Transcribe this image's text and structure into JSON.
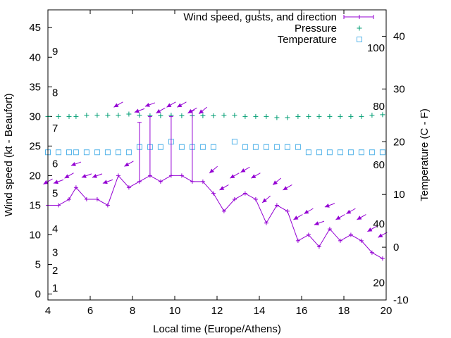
{
  "chart_data": {
    "type": "line",
    "title": "",
    "xlabel": "Local time (Europe/Athens)",
    "ylabel_left": "Wind speed (kt - Beaufort)",
    "ylabel_right": "Temperature (C - F)",
    "xlim": [
      4,
      20
    ],
    "ylim_left": [
      -1,
      48
    ],
    "ylim_right": [
      -10,
      45
    ],
    "x_ticks": [
      4,
      6,
      8,
      10,
      12,
      14,
      16,
      18,
      20
    ],
    "y_ticks_left": [
      0,
      5,
      10,
      15,
      20,
      25,
      30,
      35,
      40,
      45
    ],
    "y_ticks_right": [
      -10,
      0,
      10,
      20,
      30,
      40
    ],
    "beaufort_labels": [
      {
        "label": "1",
        "y": 1
      },
      {
        "label": "2",
        "y": 4
      },
      {
        "label": "3",
        "y": 7
      },
      {
        "label": "4",
        "y": 11
      },
      {
        "label": "5",
        "y": 17
      },
      {
        "label": "6",
        "y": 22
      },
      {
        "label": "7",
        "y": 28
      },
      {
        "label": "8",
        "y": 34
      },
      {
        "label": "9",
        "y": 41
      }
    ],
    "fahrenheit_labels": [
      {
        "label": "20",
        "y_celsius": -6.7
      },
      {
        "label": "40",
        "y_celsius": 4.4
      },
      {
        "label": "60",
        "y_celsius": 15.6
      },
      {
        "label": "80",
        "y_celsius": 26.7
      },
      {
        "label": "100",
        "y_celsius": 37.8
      }
    ],
    "legend_position": "top-right",
    "series": [
      {
        "name": "Wind speed, gusts, and direction",
        "color": "#9400d3",
        "x": [
          4,
          4.5,
          5,
          5.33,
          5.83,
          6.33,
          6.83,
          7.33,
          7.83,
          8.33,
          8.83,
          9.33,
          9.83,
          10.33,
          10.83,
          11.33,
          11.83,
          12.33,
          12.83,
          13.33,
          13.83,
          14.33,
          14.83,
          15.33,
          15.83,
          16.33,
          16.83,
          17.33,
          17.83,
          18.33,
          18.83,
          19.33,
          19.83
        ],
        "y": [
          15,
          15,
          16,
          18,
          16,
          16,
          15,
          20,
          18,
          19,
          20,
          19,
          20,
          20,
          19,
          19,
          17,
          14,
          16,
          17,
          16,
          12,
          15,
          14,
          9,
          10,
          8,
          11,
          9,
          10,
          9,
          7,
          6
        ],
        "gusts": [
          {
            "x": 8.33,
            "y": 29
          },
          {
            "x": 8.83,
            "y": 30
          },
          {
            "x": 9.83,
            "y": 30
          },
          {
            "x": 10.83,
            "y": 31
          }
        ],
        "direction_deg": [
          60,
          70,
          60,
          70,
          70,
          70,
          70,
          60,
          60,
          70,
          70,
          60,
          60,
          60,
          60,
          50,
          50,
          60,
          60,
          60,
          60,
          50,
          50,
          60,
          60,
          60,
          70,
          70,
          60,
          60,
          60,
          60,
          60
        ]
      },
      {
        "name": "Pressure",
        "color": "#009e73",
        "x": [
          4,
          4.5,
          5,
          5.33,
          5.83,
          6.33,
          6.83,
          7.33,
          7.83,
          8.33,
          8.83,
          9.33,
          9.83,
          10.33,
          10.83,
          11.33,
          11.83,
          12.33,
          12.83,
          13.33,
          13.83,
          14.33,
          14.83,
          15.33,
          15.83,
          16.33,
          16.83,
          17.33,
          17.83,
          18.33,
          18.83,
          19.33,
          19.83
        ],
        "y": [
          30,
          30,
          30,
          30,
          30.2,
          30.2,
          30.2,
          30.2,
          30.4,
          30.2,
          30.1,
          30.1,
          30.2,
          30.1,
          30.1,
          30.1,
          30.1,
          30.2,
          30.2,
          30,
          30,
          30,
          29.8,
          29.8,
          30,
          30,
          30,
          30,
          30,
          30,
          30,
          30.2,
          30.3
        ]
      },
      {
        "name": "Temperature",
        "color": "#56b4e9",
        "x": [
          4,
          4.5,
          5,
          5.33,
          5.83,
          6.33,
          6.83,
          7.33,
          7.83,
          8.33,
          8.83,
          9.33,
          9.83,
          10.33,
          10.83,
          11.33,
          11.83,
          12.83,
          13.33,
          13.83,
          14.33,
          14.83,
          15.33,
          15.83,
          16.33,
          16.83,
          17.33,
          17.83,
          18.33,
          18.83,
          19.33,
          19.83
        ],
        "y": [
          18,
          18,
          18,
          18,
          18,
          18,
          18,
          18,
          18,
          19,
          19,
          19,
          20,
          19,
          19,
          19,
          19,
          20,
          19,
          19,
          19,
          19,
          19,
          19,
          18,
          18,
          18,
          18,
          18,
          18,
          18,
          18
        ]
      }
    ]
  }
}
